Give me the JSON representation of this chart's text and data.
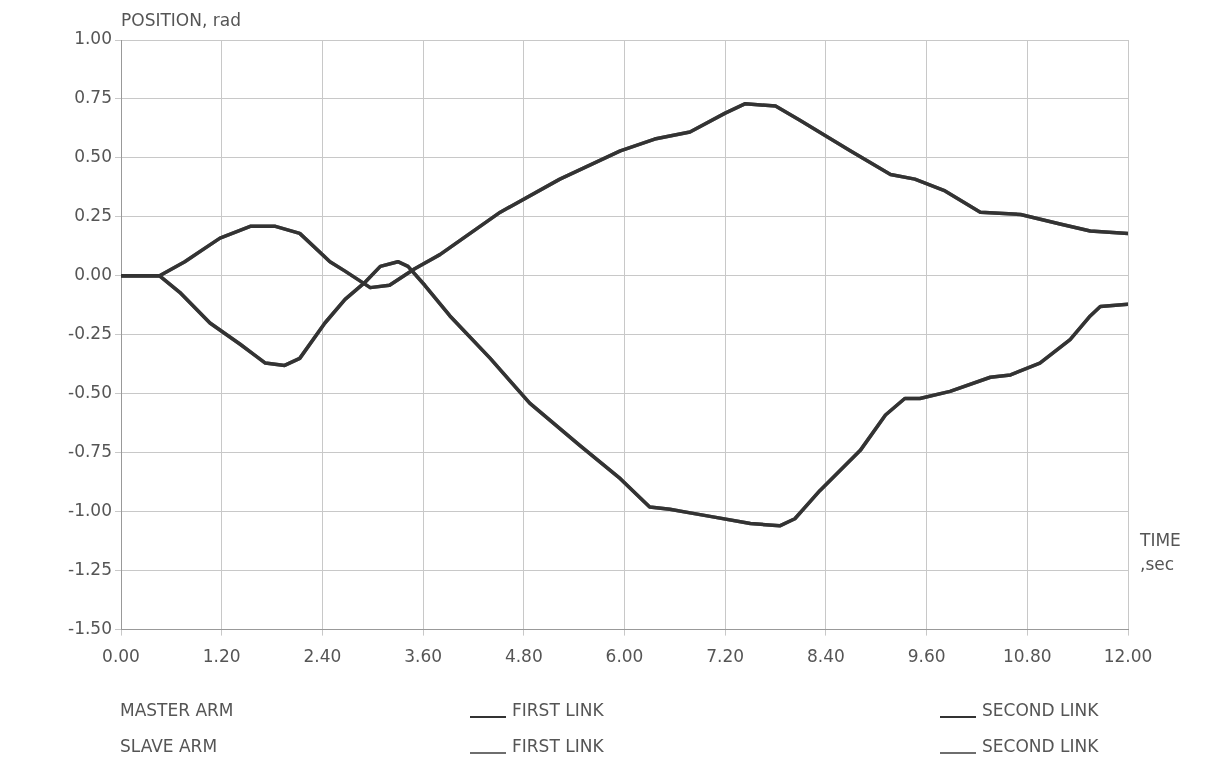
{
  "chart_data": {
    "type": "line",
    "ylabel": "POSITION, rad",
    "xlabel": "TIME ,sec",
    "xlim": [
      0,
      12
    ],
    "ylim": [
      -1.5,
      1
    ],
    "xticks": [
      {
        "value": 0,
        "label": "0.00"
      },
      {
        "value": 1.2,
        "label": "1.20"
      },
      {
        "value": 2.4,
        "label": "2.40"
      },
      {
        "value": 3.6,
        "label": "3.60"
      },
      {
        "value": 4.8,
        "label": "4.80"
      },
      {
        "value": 6,
        "label": "6.00"
      },
      {
        "value": 7.2,
        "label": "7.20"
      },
      {
        "value": 8.4,
        "label": "8.40"
      },
      {
        "value": 9.6,
        "label": "9.60"
      },
      {
        "value": 10.8,
        "label": "10.80"
      },
      {
        "value": 12,
        "label": "12.00"
      }
    ],
    "yticks": [
      {
        "value": 1,
        "label": "1.00"
      },
      {
        "value": 0.75,
        "label": "0.75"
      },
      {
        "value": 0.5,
        "label": "0.50"
      },
      {
        "value": 0.25,
        "label": "0.25"
      },
      {
        "value": 0,
        "label": "0.00"
      },
      {
        "value": -0.25,
        "label": "-0.25"
      },
      {
        "value": -0.5,
        "label": "-0.50"
      },
      {
        "value": -0.75,
        "label": "-0.75"
      },
      {
        "value": -1,
        "label": "-1.00"
      },
      {
        "value": -1.25,
        "label": "-1.25"
      },
      {
        "value": -1.5,
        "label": "-1.50"
      }
    ],
    "grid": true,
    "legend": "bottom",
    "marker": "none",
    "line_style": "solid",
    "annotations": [
      "MASTER ARM",
      "SLAVE ARM"
    ],
    "series": [
      {
        "name": "FIRST LINK",
        "color": "#333333",
        "x": [
          0,
          0.46,
          0.76,
          1.18,
          1.54,
          1.84,
          2.13,
          2.49,
          2.67,
          2.97,
          3.2,
          3.5,
          3.8,
          4.52,
          5.23,
          5.95,
          6.36,
          6.78,
          7.2,
          7.44,
          7.8,
          8.09,
          8.69,
          9.17,
          9.46,
          9.82,
          10.24,
          10.72,
          11.19,
          11.55,
          12
        ],
        "values": [
          0,
          0,
          0.06,
          0.16,
          0.21,
          0.21,
          0.18,
          0.06,
          0.02,
          -0.05,
          -0.04,
          0.03,
          0.09,
          0.27,
          0.41,
          0.53,
          0.58,
          0.61,
          0.69,
          0.73,
          0.72,
          0.66,
          0.53,
          0.43,
          0.41,
          0.36,
          0.27,
          0.26,
          0.22,
          0.19,
          0.18
        ]
      },
      {
        "name": "SECOND LINK",
        "color": "#333333",
        "x": [
          0,
          0.46,
          0.7,
          1.06,
          1.42,
          1.72,
          1.95,
          2.13,
          2.43,
          2.67,
          2.9,
          3.09,
          3.3,
          3.42,
          3.62,
          3.92,
          4.4,
          4.87,
          5.47,
          5.95,
          6.3,
          6.54,
          7.02,
          7.5,
          7.85,
          8.03,
          8.33,
          8.81,
          9.11,
          9.34,
          9.52,
          9.88,
          10.36,
          10.6,
          10.95,
          11.31,
          11.55,
          11.67,
          12
        ],
        "values": [
          0,
          0,
          -0.07,
          -0.2,
          -0.29,
          -0.37,
          -0.38,
          -0.35,
          -0.2,
          -0.1,
          -0.03,
          0.04,
          0.06,
          0.04,
          -0.04,
          -0.17,
          -0.35,
          -0.54,
          -0.72,
          -0.86,
          -0.98,
          -0.99,
          -1.02,
          -1.05,
          -1.06,
          -1.03,
          -0.91,
          -0.74,
          -0.59,
          -0.52,
          -0.52,
          -0.49,
          -0.43,
          -0.42,
          -0.37,
          -0.27,
          -0.17,
          -0.13,
          -0.12
        ]
      },
      {
        "name": "FIRST LINK",
        "color": "#6e6e6e",
        "x": [
          0,
          0.46,
          0.76,
          1.18,
          1.54,
          1.84,
          2.13,
          2.49,
          2.67,
          2.97,
          3.2,
          3.5,
          3.8,
          4.52,
          5.23,
          5.95,
          6.36,
          6.78,
          7.2,
          7.44,
          7.8,
          8.09,
          8.69,
          9.17,
          9.46,
          9.82,
          10.24,
          10.72,
          11.19,
          11.55,
          12
        ],
        "values": [
          0,
          0,
          0.06,
          0.16,
          0.21,
          0.21,
          0.18,
          0.06,
          0.02,
          -0.05,
          -0.04,
          0.03,
          0.09,
          0.27,
          0.41,
          0.53,
          0.58,
          0.61,
          0.69,
          0.73,
          0.72,
          0.66,
          0.53,
          0.43,
          0.41,
          0.36,
          0.27,
          0.26,
          0.22,
          0.19,
          0.18
        ]
      },
      {
        "name": "SECOND LINK",
        "color": "#6e6e6e",
        "x": [
          0,
          0.46,
          0.7,
          1.06,
          1.42,
          1.72,
          1.95,
          2.13,
          2.43,
          2.67,
          2.9,
          3.09,
          3.3,
          3.42,
          3.62,
          3.92,
          4.4,
          4.87,
          5.47,
          5.95,
          6.3,
          6.54,
          7.02,
          7.5,
          7.85,
          8.03,
          8.33,
          8.81,
          9.11,
          9.34,
          9.52,
          9.88,
          10.36,
          10.6,
          10.95,
          11.31,
          11.55,
          11.67,
          12
        ],
        "values": [
          0,
          0,
          -0.07,
          -0.2,
          -0.29,
          -0.37,
          -0.38,
          -0.35,
          -0.2,
          -0.1,
          -0.03,
          0.04,
          0.06,
          0.04,
          -0.04,
          -0.17,
          -0.35,
          -0.54,
          -0.72,
          -0.86,
          -0.98,
          -0.99,
          -1.02,
          -1.05,
          -1.06,
          -1.03,
          -0.91,
          -0.74,
          -0.59,
          -0.52,
          -0.52,
          -0.49,
          -0.43,
          -0.42,
          -0.37,
          -0.27,
          -0.17,
          -0.13,
          -0.12
        ]
      }
    ]
  }
}
